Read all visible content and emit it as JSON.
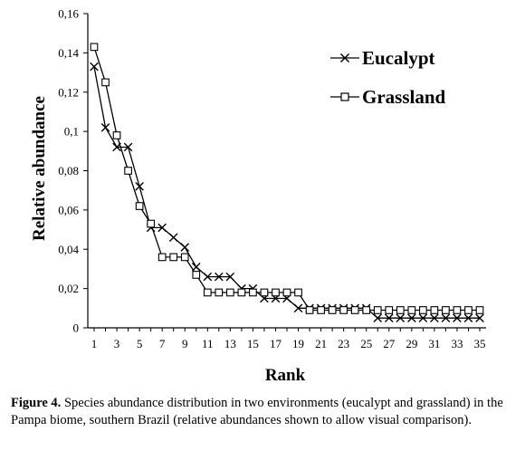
{
  "chart_data": {
    "type": "line",
    "xlabel": "Rank",
    "ylabel": "Relative abundance",
    "x": [
      1,
      2,
      3,
      4,
      5,
      6,
      7,
      8,
      9,
      10,
      11,
      12,
      13,
      14,
      15,
      16,
      17,
      18,
      19,
      20,
      21,
      22,
      23,
      24,
      25,
      26,
      27,
      28,
      29,
      30,
      31,
      32,
      33,
      34,
      35
    ],
    "xticks": [
      "1",
      "3",
      "5",
      "7",
      "9",
      "11",
      "13",
      "15",
      "17",
      "19",
      "21",
      "23",
      "25",
      "27",
      "29",
      "31",
      "33",
      "35"
    ],
    "xtick_values": [
      1,
      3,
      5,
      7,
      9,
      11,
      13,
      15,
      17,
      19,
      21,
      23,
      25,
      27,
      29,
      31,
      33,
      35
    ],
    "ylim": [
      0,
      0.16
    ],
    "yticks": [
      "0",
      "0,02",
      "0,04",
      "0,06",
      "0,08",
      "0,1",
      "0,12",
      "0,14",
      "0,16"
    ],
    "ytick_values": [
      0,
      0.02,
      0.04,
      0.06,
      0.08,
      0.1,
      0.12,
      0.14,
      0.16
    ],
    "legend_position": "top-right",
    "grid": false,
    "series": [
      {
        "name": "Eucalypt",
        "marker": "x",
        "values": [
          0.133,
          0.102,
          0.092,
          0.092,
          0.072,
          0.051,
          0.051,
          0.046,
          0.041,
          0.031,
          0.026,
          0.026,
          0.026,
          0.02,
          0.02,
          0.015,
          0.015,
          0.015,
          0.01,
          0.01,
          0.01,
          0.01,
          0.01,
          0.01,
          0.01,
          0.005,
          0.005,
          0.005,
          0.005,
          0.005,
          0.005,
          0.005,
          0.005,
          0.005,
          0.005
        ]
      },
      {
        "name": "Grassland",
        "marker": "square",
        "values": [
          0.143,
          0.125,
          0.098,
          0.08,
          0.062,
          0.053,
          0.036,
          0.036,
          0.036,
          0.027,
          0.018,
          0.018,
          0.018,
          0.018,
          0.018,
          0.018,
          0.018,
          0.018,
          0.018,
          0.009,
          0.009,
          0.009,
          0.009,
          0.009,
          0.009,
          0.009,
          0.009,
          0.009,
          0.009,
          0.009,
          0.009,
          0.009,
          0.009,
          0.009,
          0.009
        ]
      }
    ]
  },
  "caption": {
    "label": "Figure 4.",
    "text": " Species abundance distribution in two environments (eucalypt and grassland) in the Pampa biome, southern Brazil (relative abundances shown to allow visual comparison)."
  }
}
